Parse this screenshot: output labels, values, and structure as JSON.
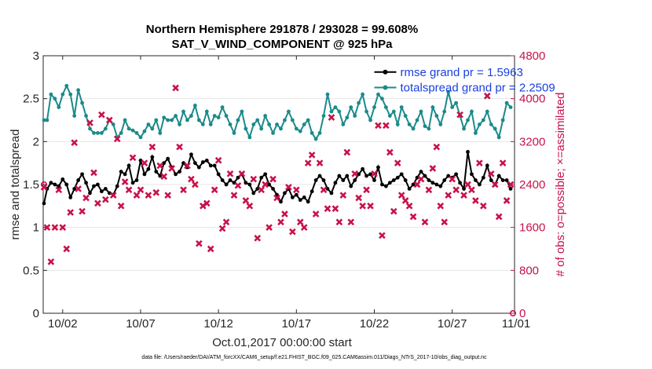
{
  "chart_data": {
    "type": "line",
    "title": [
      "Northern Hemisphere 291878 / 293028 = 99.608%",
      "SAT_V_WIND_COMPONENT @ 925 hPa"
    ],
    "xlabel": "Oct.01,2017 00:00:00 start",
    "ylabel": "rmse and totalspread",
    "ylabel_right": "# of obs: o=possible; ×=assimilated",
    "xlim": [
      0.75,
      31.0
    ],
    "ylim": [
      0,
      3
    ],
    "ylim_right": [
      0,
      4800
    ],
    "x_ticks": [
      2,
      7,
      12,
      17,
      22,
      27,
      32
    ],
    "x_ticklabels": [
      "10/02",
      "10/07",
      "10/12",
      "10/17",
      "10/22",
      "10/27",
      "11/01"
    ],
    "y_ticks": [
      0,
      0.5,
      1,
      1.5,
      2,
      2.5,
      3
    ],
    "y_ticklabels": [
      "0",
      "0.5",
      "1",
      "1.5",
      "2",
      "2.5",
      "3"
    ],
    "y_ticks_right": [
      0,
      800,
      1600,
      2400,
      3200,
      4000,
      4800
    ],
    "y_ticklabels_right": [
      "0",
      "800",
      "1600",
      "2400",
      "3200",
      "4000",
      "4800"
    ],
    "footnote": "data file: /Users/raeder/DAI/ATM_forcXX/CAM6_setup/f.e21.FHIST_BGC.f09_025.CAM6assim.011/Diags_NTrS_2017-10/obs_diag_output.nc",
    "series": [
      {
        "name": "rmse",
        "legend": "rmse grand pr = 1.5963",
        "color": "#000000",
        "x": [
          0.8,
          1.0,
          1.25,
          1.5,
          1.75,
          2.0,
          2.25,
          2.5,
          2.75,
          3.0,
          3.25,
          3.5,
          3.75,
          4.0,
          4.25,
          4.5,
          4.75,
          5.0,
          5.25,
          5.5,
          5.75,
          6.0,
          6.25,
          6.5,
          6.75,
          7.0,
          7.25,
          7.5,
          7.75,
          8.0,
          8.25,
          8.5,
          8.75,
          9.0,
          9.25,
          9.5,
          9.75,
          10.0,
          10.25,
          10.5,
          10.75,
          11.0,
          11.25,
          11.5,
          11.75,
          12.0,
          12.25,
          12.5,
          12.75,
          13.0,
          13.25,
          13.5,
          13.75,
          14.0,
          14.25,
          14.5,
          14.75,
          15.0,
          15.25,
          15.5,
          15.75,
          16.0,
          16.25,
          16.5,
          16.75,
          17.0,
          17.25,
          17.5,
          17.75,
          18.0,
          18.25,
          18.5,
          18.75,
          19.0,
          19.25,
          19.5,
          19.75,
          20.0,
          20.25,
          20.5,
          20.75,
          21.0,
          21.25,
          21.5,
          21.75,
          22.0,
          22.25,
          22.5,
          22.75,
          23.0,
          23.25,
          23.5,
          23.75,
          24.0,
          24.25,
          24.5,
          24.75,
          25.0,
          25.25,
          25.5,
          25.75,
          26.0,
          26.25,
          26.5,
          26.75,
          27.0,
          27.25,
          27.5,
          27.75,
          28.0,
          28.25,
          28.5,
          28.75,
          29.0,
          29.25,
          29.5,
          29.75,
          30.0,
          30.25,
          30.5,
          30.75
        ],
        "y": [
          1.28,
          1.45,
          1.52,
          1.5,
          1.48,
          1.56,
          1.5,
          1.35,
          1.45,
          1.55,
          1.62,
          1.52,
          1.4,
          1.48,
          1.5,
          1.42,
          1.45,
          1.4,
          1.38,
          1.48,
          1.65,
          1.62,
          1.72,
          1.52,
          1.55,
          1.78,
          1.62,
          1.68,
          1.82,
          1.65,
          1.6,
          1.75,
          1.8,
          1.7,
          1.62,
          1.65,
          1.75,
          1.7,
          1.85,
          1.75,
          1.7,
          1.76,
          1.78,
          1.72,
          1.72,
          1.62,
          1.55,
          1.5,
          1.55,
          1.52,
          1.58,
          1.62,
          1.52,
          1.5,
          1.4,
          1.45,
          1.58,
          1.62,
          1.5,
          1.45,
          1.38,
          1.3,
          1.4,
          1.45,
          1.35,
          1.38,
          1.32,
          1.35,
          1.3,
          1.42,
          1.55,
          1.6,
          1.55,
          1.45,
          1.4,
          1.52,
          1.6,
          1.55,
          1.6,
          1.48,
          1.55,
          1.62,
          1.68,
          1.6,
          1.62,
          1.55,
          1.7,
          1.5,
          1.48,
          1.52,
          1.55,
          1.58,
          1.62,
          1.55,
          1.45,
          1.5,
          1.58,
          1.65,
          1.6,
          1.55,
          1.52,
          1.5,
          1.48,
          1.55,
          1.6,
          1.58,
          1.62,
          1.52,
          1.45,
          1.88,
          1.62,
          1.55,
          1.5,
          1.58,
          1.72,
          1.55,
          1.5,
          1.6,
          1.55,
          1.55,
          1.45
        ],
        "legend_x": 22.0,
        "legend_y": 2.81
      },
      {
        "name": "totalspread",
        "legend": "totalspread grand pr = 2.2509",
        "color": "#1b8a8a",
        "x": [
          0.8,
          1.0,
          1.25,
          1.5,
          1.75,
          2.0,
          2.25,
          2.5,
          2.75,
          3.0,
          3.25,
          3.5,
          3.75,
          4.0,
          4.25,
          4.5,
          4.75,
          5.0,
          5.25,
          5.5,
          5.75,
          6.0,
          6.25,
          6.5,
          6.75,
          7.0,
          7.25,
          7.5,
          7.75,
          8.0,
          8.25,
          8.5,
          8.75,
          9.0,
          9.25,
          9.5,
          9.75,
          10.0,
          10.25,
          10.5,
          10.75,
          11.0,
          11.25,
          11.5,
          11.75,
          12.0,
          12.25,
          12.5,
          12.75,
          13.0,
          13.25,
          13.5,
          13.75,
          14.0,
          14.25,
          14.5,
          14.75,
          15.0,
          15.25,
          15.5,
          15.75,
          16.0,
          16.25,
          16.5,
          16.75,
          17.0,
          17.25,
          17.5,
          17.75,
          18.0,
          18.25,
          18.5,
          18.75,
          19.0,
          19.25,
          19.5,
          19.75,
          20.0,
          20.25,
          20.5,
          20.75,
          21.0,
          21.25,
          21.5,
          21.75,
          22.0,
          22.25,
          22.5,
          22.75,
          23.0,
          23.25,
          23.5,
          23.75,
          24.0,
          24.25,
          24.5,
          24.75,
          25.0,
          25.25,
          25.5,
          25.75,
          26.0,
          26.25,
          26.5,
          26.75,
          27.0,
          27.25,
          27.5,
          27.75,
          28.0,
          28.25,
          28.5,
          28.75,
          29.0,
          29.25,
          29.5,
          29.75,
          30.0,
          30.25,
          30.5,
          30.75
        ],
        "y": [
          2.25,
          2.25,
          2.55,
          2.5,
          2.4,
          2.55,
          2.65,
          2.55,
          2.3,
          2.6,
          2.45,
          2.3,
          2.15,
          2.1,
          2.1,
          2.1,
          2.15,
          2.25,
          2.2,
          2.05,
          2.1,
          2.25,
          2.15,
          2.13,
          2.1,
          2.05,
          2.12,
          2.2,
          2.15,
          2.25,
          2.1,
          2.28,
          2.25,
          2.25,
          2.3,
          2.2,
          2.35,
          2.25,
          2.3,
          2.42,
          2.25,
          2.2,
          2.35,
          2.2,
          2.3,
          2.28,
          2.4,
          2.3,
          2.2,
          2.1,
          2.25,
          2.35,
          2.15,
          2.05,
          2.2,
          2.25,
          2.15,
          2.3,
          2.2,
          2.1,
          2.2,
          2.15,
          2.25,
          2.35,
          2.25,
          2.15,
          2.12,
          2.2,
          2.25,
          2.1,
          2.03,
          2.1,
          2.3,
          2.55,
          2.35,
          2.4,
          2.35,
          2.2,
          2.28,
          2.4,
          2.3,
          2.45,
          2.55,
          2.35,
          2.25,
          2.4,
          2.55,
          2.5,
          2.4,
          2.3,
          2.35,
          2.2,
          2.4,
          2.3,
          2.2,
          2.15,
          2.25,
          2.35,
          2.18,
          2.15,
          2.4,
          2.3,
          2.2,
          2.35,
          2.58,
          2.4,
          2.45,
          2.3,
          2.15,
          2.25,
          2.35,
          2.1,
          2.2,
          2.25,
          2.35,
          2.2,
          2.15,
          2.05,
          2.25,
          2.45,
          2.4
        ],
        "legend_x": 22.0,
        "legend_y": 2.63
      },
      {
        "name": "possible",
        "axis": "right",
        "marker": "o",
        "color": "#c8124a",
        "x": [
          0.8,
          30.9
        ],
        "y": [
          2400,
          0
        ]
      },
      {
        "name": "assimilated",
        "axis": "right",
        "marker": "x",
        "color": "#c8124a",
        "x": [
          0.8,
          1.0,
          1.25,
          1.5,
          1.75,
          2.0,
          2.25,
          2.5,
          2.75,
          3.0,
          3.25,
          3.5,
          3.75,
          4.0,
          4.25,
          4.5,
          4.75,
          5.0,
          5.25,
          5.5,
          5.75,
          6.0,
          6.25,
          6.5,
          6.75,
          7.0,
          7.25,
          7.5,
          7.75,
          8.0,
          8.25,
          8.5,
          8.75,
          9.0,
          9.25,
          9.5,
          9.75,
          10.0,
          10.25,
          10.5,
          10.75,
          11.0,
          11.25,
          11.5,
          11.75,
          12.0,
          12.25,
          12.5,
          12.75,
          13.0,
          13.25,
          13.5,
          13.75,
          14.0,
          14.25,
          14.5,
          14.75,
          15.0,
          15.25,
          15.5,
          15.75,
          16.0,
          16.25,
          16.5,
          16.75,
          17.0,
          17.25,
          17.5,
          17.75,
          18.0,
          18.25,
          18.5,
          18.75,
          19.0,
          19.25,
          19.5,
          19.75,
          20.0,
          20.25,
          20.5,
          20.75,
          21.0,
          21.25,
          21.5,
          21.75,
          22.0,
          22.25,
          22.5,
          22.75,
          23.0,
          23.25,
          23.5,
          23.75,
          24.0,
          24.25,
          24.5,
          24.75,
          25.0,
          25.25,
          25.5,
          25.75,
          26.0,
          26.25,
          26.5,
          26.75,
          27.0,
          27.25,
          27.5,
          27.75,
          28.0,
          28.25,
          28.5,
          28.75,
          29.0,
          29.25,
          29.5,
          29.75,
          30.0,
          30.25,
          30.5,
          30.75
        ],
        "y": [
          2350,
          1600,
          960,
          1600,
          2300,
          1600,
          1200,
          1880,
          3180,
          2320,
          1900,
          2150,
          3550,
          2620,
          2050,
          3700,
          2120,
          3600,
          2200,
          3250,
          2000,
          2450,
          2300,
          2900,
          2200,
          2300,
          2800,
          2200,
          3100,
          2250,
          2750,
          2550,
          2200,
          2700,
          4200,
          3100,
          2300,
          2750,
          2500,
          2400,
          1300,
          2000,
          2050,
          1200,
          2300,
          2850,
          1580,
          1700,
          2600,
          2200,
          2380,
          2600,
          2100,
          2000,
          2500,
          1400,
          2300,
          2400,
          1600,
          2500,
          2150,
          1700,
          1850,
          2350,
          1520,
          2300,
          1700,
          1600,
          2800,
          2950,
          1850,
          2800,
          2300,
          1950,
          3650,
          1950,
          1700,
          2200,
          3000,
          1700,
          2600,
          2150,
          2000,
          2300,
          2000,
          2600,
          3500,
          1450,
          3500,
          3000,
          1900,
          2800,
          2200,
          2100,
          2000,
          1800,
          2400,
          2500,
          1700,
          2300,
          2700,
          3100,
          2000,
          1700,
          2200,
          2500,
          2300,
          3700,
          2200,
          2400,
          2300,
          2100,
          2800,
          2000,
          4050,
          2600,
          2400,
          1800,
          2800,
          2100,
          2400
        ]
      }
    ]
  }
}
